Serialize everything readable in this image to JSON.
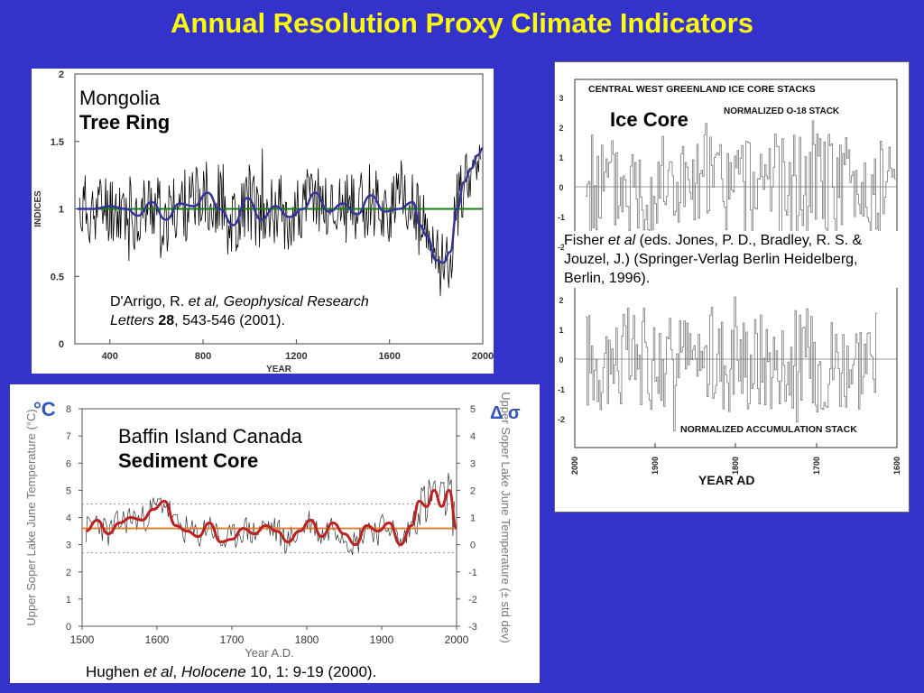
{
  "slide": {
    "title": "Annual Resolution Proxy Climate Indicators"
  },
  "panels": {
    "mongolia": {
      "label_line1": "Mongolia",
      "label_line2": "Tree Ring",
      "citation": {
        "authors": "D'Arrigo, R. ",
        "etal": "et al, Geophysical Research",
        "journal": "Letters",
        "volume": "28",
        "pages": ", 543-546 (2001)."
      }
    },
    "icecore": {
      "label": "Ice Core",
      "header_top": "CENTRAL  WEST  GREENLAND   ICE  CORE  STACKS",
      "header_top2": "NORMALIZED    O-18    STACK",
      "header_bottom": "NORMALIZED  ACCUMULATION  STACK",
      "xlabel": "YEAR    AD",
      "citation": {
        "pre": "Fisher ",
        "etal": "et al",
        "rest": " (eds. Jones, P. D., Bradley, R. S. & Jouzel, J.) (Springer-Verlag Berlin Heidelberg, Berlin, 1996)."
      }
    },
    "baffin": {
      "label_line1": "Baffin Island Canada",
      "label_line2": "Sediment Core",
      "citation": {
        "pre": "Hughen ",
        "etal": "et al",
        "sep": ", ",
        "journal": "Holocene",
        "rest": " 10, 1: 9-19 (2000)."
      }
    }
  },
  "chart_data": [
    {
      "id": "mongolia",
      "type": "line",
      "xlabel": "YEAR",
      "ylabel": "INDICES",
      "xlim": [
        250,
        2000
      ],
      "ylim": [
        0,
        2
      ],
      "xticks": [
        "400",
        "800",
        "1200",
        "1600",
        "2000"
      ],
      "yticks": [
        "0",
        "0.5",
        "1",
        "1.5",
        "2"
      ],
      "reference_line": 1,
      "colors": {
        "raw": "#000000",
        "smooth": "#333399",
        "mean": "#1a7a1a"
      },
      "series": [
        {
          "smooth": true,
          "x": [
            260,
            330,
            400,
            470,
            520,
            580,
            640,
            700,
            760,
            820,
            870,
            930,
            990,
            1050,
            1110,
            1170,
            1230,
            1280,
            1340,
            1400,
            1460,
            1520,
            1580,
            1640,
            1700,
            1730,
            1760,
            1800,
            1830,
            1860,
            1890,
            1920,
            1950,
            1980,
            2000
          ],
          "values": [
            1.0,
            1.0,
            1.02,
            1.0,
            0.95,
            1.05,
            0.92,
            1.04,
            1.02,
            1.12,
            1.0,
            0.88,
            1.08,
            0.92,
            1.02,
            0.94,
            1.0,
            1.12,
            0.98,
            1.04,
            0.96,
            1.1,
            0.98,
            1.0,
            1.05,
            0.88,
            0.8,
            0.62,
            0.6,
            0.68,
            1.0,
            1.2,
            1.3,
            1.4,
            1.45
          ]
        }
      ]
    },
    {
      "id": "icecore-o18",
      "type": "line",
      "title": "NORMALIZED    O-18    STACK",
      "xlim": [
        2000,
        1600
      ],
      "ylim": [
        -3,
        3
      ],
      "yticks": [
        "3",
        "2",
        "1",
        "0",
        "-1",
        "-2"
      ]
    },
    {
      "id": "icecore-accumulation",
      "type": "line",
      "title": "NORMALIZED  ACCUMULATION  STACK",
      "xlabel": "YEAR    AD",
      "xlim": [
        2000,
        1600
      ],
      "ylim": [
        -3,
        3
      ],
      "xticks": [
        "2000",
        "1900",
        "1800",
        "1700",
        "1600"
      ],
      "yticks": [
        "2",
        "1",
        "0",
        "-1",
        "-2"
      ]
    },
    {
      "id": "baffin",
      "type": "line",
      "xlabel": "Year A.D.",
      "ylabel": "Upper Soper Lake June Temperature (°C)",
      "y2label": "Upper Soper Lake June Temperature (± std dev)",
      "xlim": [
        1500,
        2000
      ],
      "ylim": [
        0,
        8
      ],
      "y2lim": [
        -3,
        5
      ],
      "xticks": [
        "1500",
        "1600",
        "1700",
        "1800",
        "1900",
        "2000"
      ],
      "yticks": [
        "0",
        "1",
        "2",
        "3",
        "4",
        "5",
        "6",
        "7",
        "8"
      ],
      "y2ticks": [
        "-3",
        "-2",
        "-1",
        "0",
        "1",
        "2",
        "3",
        "4",
        "5"
      ],
      "mean_line": 3.6,
      "colors": {
        "raw": "#333333",
        "smooth": "#bb2222",
        "mean": "#e07a2a",
        "left_axis": "#3355bb"
      },
      "series": [
        {
          "smooth": true,
          "x": [
            1505,
            1520,
            1535,
            1550,
            1565,
            1580,
            1595,
            1610,
            1625,
            1640,
            1655,
            1670,
            1685,
            1700,
            1715,
            1730,
            1745,
            1760,
            1775,
            1790,
            1805,
            1820,
            1835,
            1850,
            1865,
            1880,
            1895,
            1910,
            1925,
            1940,
            1950,
            1960,
            1970,
            1980,
            1990,
            2000
          ],
          "values": [
            3.5,
            3.9,
            3.4,
            3.8,
            4.0,
            3.9,
            4.3,
            4.6,
            3.7,
            3.5,
            3.3,
            3.8,
            3.1,
            3.2,
            3.6,
            3.4,
            3.7,
            3.5,
            3.1,
            3.5,
            3.9,
            3.3,
            3.8,
            3.4,
            3.0,
            3.7,
            3.5,
            3.8,
            3.0,
            3.7,
            4.6,
            4.4,
            5.0,
            4.4,
            5.0,
            3.6
          ]
        }
      ]
    }
  ]
}
